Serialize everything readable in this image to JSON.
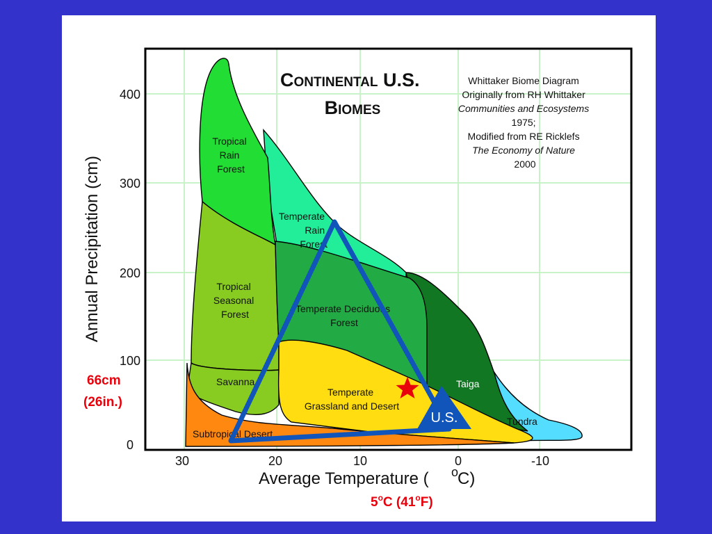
{
  "title": {
    "line1": "Continental U.S.",
    "line2": "Biomes"
  },
  "credit": {
    "lines": [
      "Whittaker Biome Diagram",
      "Originally from RH Whittaker",
      "Communities and Ecosystems",
      "1975;",
      "Modified from RE Ricklefs",
      "The Economy of Nature",
      "2000"
    ]
  },
  "axes": {
    "x_title": "Average Temperature (",
    "x_unit_super": "o",
    "x_unit": "C)",
    "y_title": "Annual Precipitation (cm)",
    "x_ticks": [
      "30",
      "20",
      "10",
      "0",
      "-10"
    ],
    "y_ticks": [
      "400",
      "300",
      "200",
      "100",
      "0"
    ]
  },
  "biomes": {
    "tropical_rain_forest": [
      "Tropical",
      "Rain",
      "Forest"
    ],
    "temperate_rain_forest": [
      "Temperate",
      "Rain",
      "Forest"
    ],
    "tropical_seasonal_forest": [
      "Tropical",
      "Seasonal",
      "Forest"
    ],
    "temperate_deciduous_forest": [
      "Temperate Deciduous",
      "Forest"
    ],
    "savanna": "Savanna",
    "temperate_grassland": [
      "Temperate",
      "Grassland and Desert"
    ],
    "taiga": "Taiga",
    "tundra": "Tundra",
    "subtropical_desert": "Subtropical Desert"
  },
  "annotations": {
    "us_label": "U.S.",
    "precip_value": "66cm",
    "precip_inches": "(26in.)",
    "temp_value_prefix": "5",
    "temp_deg1": "o",
    "temp_mid": "C (41",
    "temp_deg2": "o",
    "temp_suffix": "F)"
  },
  "colors": {
    "background": "#3333cc",
    "tropical_rain_forest": "#22dd33",
    "temperate_rain_forest": "#22ee99",
    "tropical_seasonal_forest": "#88cc22",
    "temperate_deciduous_forest": "#22aa44",
    "savanna": "#88cc22",
    "temperate_grassland": "#ffdd11",
    "taiga": "#117722",
    "tundra": "#55ddff",
    "subtropical_desert": "#ff8811",
    "triangle": "#1155bb",
    "star": "#e8000b"
  }
}
